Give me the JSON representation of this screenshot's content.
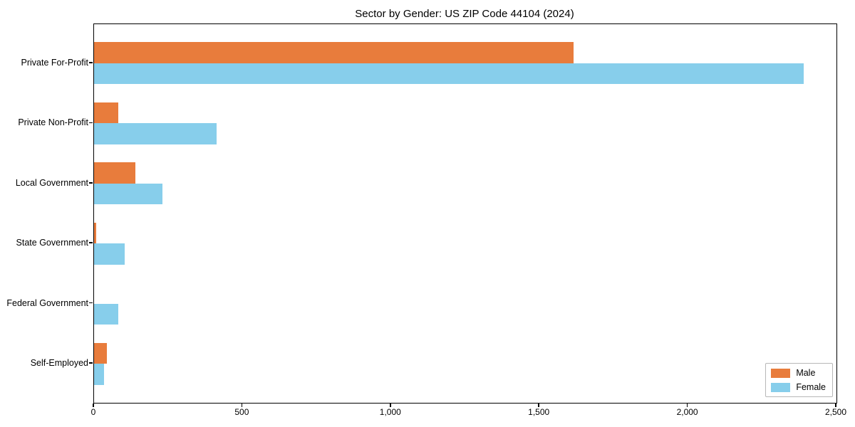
{
  "title": "Sector by Gender: US ZIP Code 44104 (2024)",
  "chart_data": {
    "type": "bar",
    "orientation": "horizontal",
    "title": "Sector by Gender: US ZIP Code 44104 (2024)",
    "categories": [
      "Private For-Profit",
      "Private Non-Profit",
      "Local Government",
      "State Government",
      "Federal Government",
      "Self-Employed"
    ],
    "series": [
      {
        "name": "Male",
        "color": "#E87C3C",
        "values": [
          1615,
          82,
          140,
          6,
          0,
          43
        ]
      },
      {
        "name": "Female",
        "color": "#87CEEB",
        "values": [
          2390,
          413,
          230,
          103,
          82,
          34
        ]
      }
    ],
    "xlabel": "",
    "ylabel": "",
    "xlim": [
      0,
      2500
    ],
    "xticks": [
      0,
      500,
      1000,
      1500,
      2000,
      2500
    ],
    "xtick_labels": [
      "0",
      "500",
      "1,000",
      "1,500",
      "2,000",
      "2,500"
    ],
    "grid": false,
    "legend_position": "lower right",
    "background_color": "#ffffff",
    "spine_color": "#000000"
  }
}
